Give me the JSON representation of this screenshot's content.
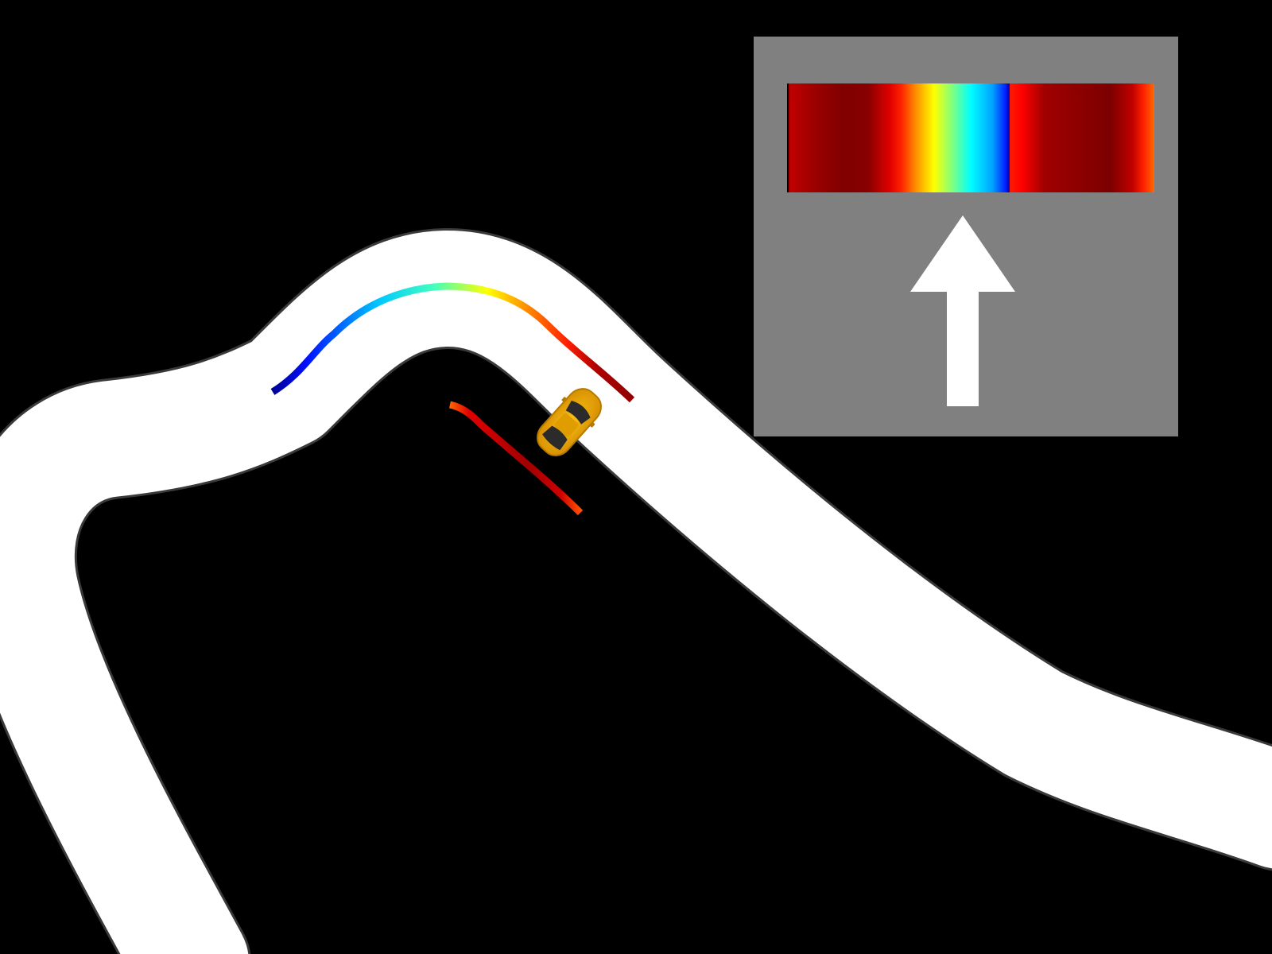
{
  "scene": {
    "background_color": "#000000",
    "track_color": "#ffffff",
    "track_edge_color": "#3a3a3a",
    "car": {
      "icon": "car-icon",
      "body_color": "#f2a900",
      "window_color": "#2b2b2b"
    },
    "sensor_trail_colormap": [
      "#00008f",
      "#0000ff",
      "#00ffff",
      "#ffff00",
      "#ff8000",
      "#ff0000",
      "#800000"
    ]
  },
  "hud": {
    "background_color": "#808080",
    "sensor_bar": {
      "colormap": "jet",
      "gradient_stops": [
        "#9e0000",
        "#800000",
        "#ff0000",
        "#ff8000",
        "#ffff00",
        "#00ffff",
        "#0040ff",
        "#0000c0",
        "#ff0000",
        "#900000",
        "#800000",
        "#ff2000"
      ]
    },
    "direction_arrow": {
      "icon": "arrow-up-icon",
      "direction": "up",
      "color": "#ffffff"
    }
  }
}
